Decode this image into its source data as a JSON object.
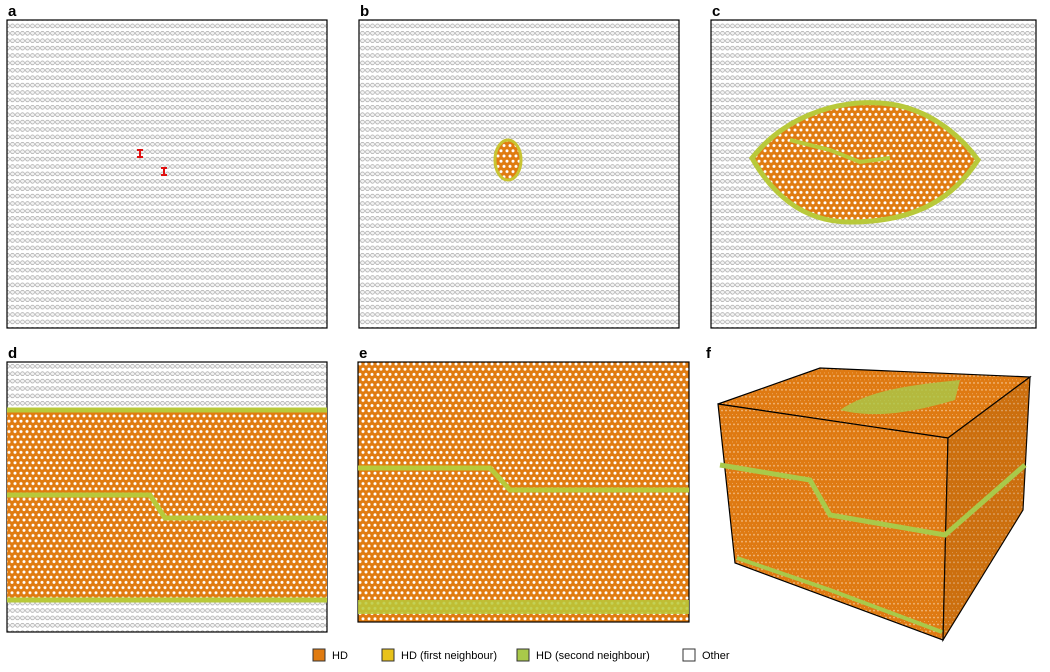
{
  "panels": [
    {
      "label": "a"
    },
    {
      "label": "b"
    },
    {
      "label": "c"
    },
    {
      "label": "d"
    },
    {
      "label": "e"
    },
    {
      "label": "f"
    }
  ],
  "legend": {
    "items": [
      {
        "label": "HD",
        "color": "#e07b10"
      },
      {
        "label": "HD (first neighbour)",
        "color": "#e8c21a"
      },
      {
        "label": "HD (second neighbour)",
        "color": "#a9c94a"
      },
      {
        "label": "Other",
        "color": "#ffffff"
      }
    ]
  }
}
